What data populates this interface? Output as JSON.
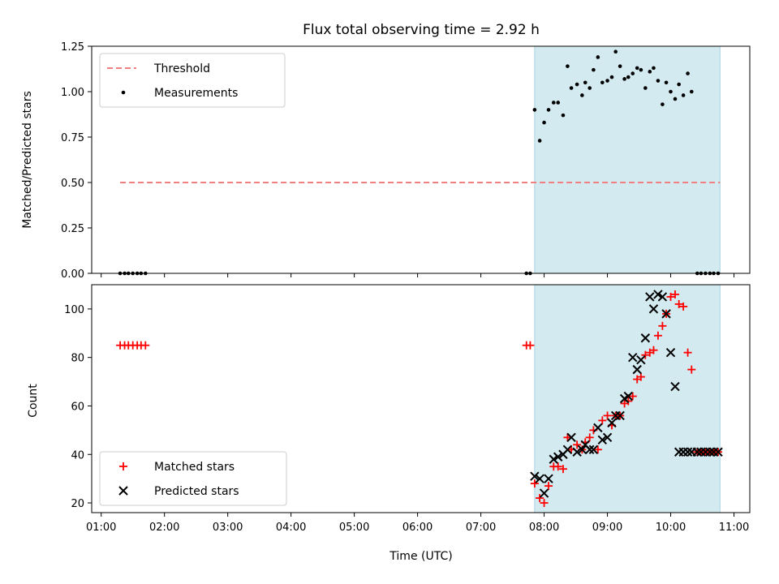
{
  "chart_data": {
    "type": "scatter",
    "title": "Flux total observing time = 2.92 h",
    "x_tick_labels": [
      "01:00",
      "02:00",
      "03:00",
      "04:00",
      "05:00",
      "06:00",
      "07:00",
      "08:00",
      "09:00",
      "10:00",
      "11:00"
    ],
    "xlabel": "Time (UTC)",
    "observing_window": {
      "start_hour": 7.85,
      "end_hour": 10.78,
      "color": "#d3eaf1"
    },
    "panels": [
      {
        "name": "ratio",
        "ylabel": "Matched/Predicted stars",
        "ylim": [
          0.0,
          1.25
        ],
        "y_tick_labels": [
          "0.00",
          "0.25",
          "0.50",
          "0.75",
          "1.00",
          "1.25"
        ],
        "legend": {
          "position": "upper left",
          "entries": [
            "Threshold",
            "Measurements"
          ]
        },
        "series": [
          {
            "name": "Threshold",
            "style": "dashed-line",
            "color": "#f08080",
            "x": [
              1.3,
              10.78
            ],
            "y": [
              0.5,
              0.5
            ]
          },
          {
            "name": "Measurements",
            "style": "dot",
            "color": "#000000",
            "x": [
              1.3,
              1.37,
              1.43,
              1.5,
              1.57,
              1.63,
              1.7,
              7.72,
              7.78,
              7.85,
              7.93,
              8.0,
              8.07,
              8.15,
              8.22,
              8.3,
              8.37,
              8.43,
              8.52,
              8.6,
              8.65,
              8.72,
              8.78,
              8.85,
              8.92,
              9.0,
              9.07,
              9.13,
              9.2,
              9.27,
              9.33,
              9.4,
              9.47,
              9.53,
              9.6,
              9.67,
              9.73,
              9.8,
              9.87,
              9.93,
              10.0,
              10.07,
              10.13,
              10.2,
              10.27,
              10.33,
              10.42,
              10.48,
              10.55,
              10.62,
              10.68,
              10.75
            ],
            "y": [
              0,
              0,
              0,
              0,
              0,
              0,
              0,
              0,
              0,
              0.9,
              0.73,
              0.83,
              0.9,
              0.94,
              0.94,
              0.87,
              1.14,
              1.02,
              1.04,
              0.98,
              1.05,
              1.02,
              1.12,
              1.19,
              1.05,
              1.06,
              1.08,
              1.22,
              1.14,
              1.07,
              1.08,
              1.1,
              1.13,
              1.12,
              1.02,
              1.11,
              1.13,
              1.06,
              0.93,
              1.05,
              1.0,
              0.96,
              1.04,
              0.98,
              1.1,
              1.0,
              0.0,
              0.0,
              0.0,
              0.0,
              0.0,
              0.0
            ]
          }
        ]
      },
      {
        "name": "counts",
        "ylabel": "Count",
        "ylim": [
          16,
          110
        ],
        "y_tick_labels": [
          "20",
          "40",
          "60",
          "80",
          "100"
        ],
        "legend": {
          "position": "lower left",
          "entries": [
            "Matched stars",
            "Predicted stars"
          ]
        },
        "series": [
          {
            "name": "Matched stars",
            "style": "plus",
            "color": "#ff0000",
            "x": [
              1.3,
              1.37,
              1.43,
              1.5,
              1.57,
              1.63,
              1.7,
              7.72,
              7.78,
              7.85,
              7.93,
              8.0,
              8.07,
              8.15,
              8.22,
              8.3,
              8.37,
              8.43,
              8.52,
              8.6,
              8.65,
              8.72,
              8.78,
              8.85,
              8.92,
              9.0,
              9.07,
              9.13,
              9.2,
              9.27,
              9.33,
              9.4,
              9.47,
              9.53,
              9.6,
              9.67,
              9.73,
              9.8,
              9.87,
              9.93,
              10.0,
              10.07,
              10.13,
              10.2,
              10.27,
              10.33,
              10.42,
              10.48,
              10.55,
              10.62,
              10.68,
              10.75
            ],
            "y": [
              85,
              85,
              85,
              85,
              85,
              85,
              85,
              85,
              85,
              28,
              22,
              20,
              27,
              35,
              35,
              34,
              47,
              42,
              44,
              42,
              45,
              47,
              50,
              42,
              54,
              56,
              52,
              56,
              56,
              61,
              62,
              64,
              71,
              72,
              81,
              82,
              83,
              89,
              93,
              98,
              105,
              106,
              102,
              101,
              82,
              75,
              41,
              41,
              41,
              41,
              41,
              41
            ]
          },
          {
            "name": "Predicted stars",
            "style": "x",
            "color": "#000000",
            "x": [
              7.85,
              7.93,
              8.0,
              8.07,
              8.15,
              8.22,
              8.3,
              8.37,
              8.43,
              8.52,
              8.6,
              8.65,
              8.72,
              8.78,
              8.85,
              8.92,
              9.0,
              9.07,
              9.13,
              9.2,
              9.27,
              9.33,
              9.4,
              9.47,
              9.53,
              9.6,
              9.67,
              9.73,
              9.8,
              9.87,
              9.93,
              10.0,
              10.07,
              10.13,
              10.2,
              10.27,
              10.33,
              10.42,
              10.48,
              10.55,
              10.62,
              10.68,
              10.75
            ],
            "y": [
              31,
              30,
              24,
              30,
              38,
              39,
              40,
              42,
              47,
              41,
              42,
              44,
              42,
              42,
              51,
              46,
              47,
              53,
              56,
              56,
              63,
              64,
              80,
              75,
              79,
              88,
              105,
              100,
              106,
              105,
              98,
              82,
              68,
              41,
              41,
              41,
              41,
              41,
              41,
              41,
              41,
              41,
              41
            ]
          }
        ]
      }
    ]
  }
}
